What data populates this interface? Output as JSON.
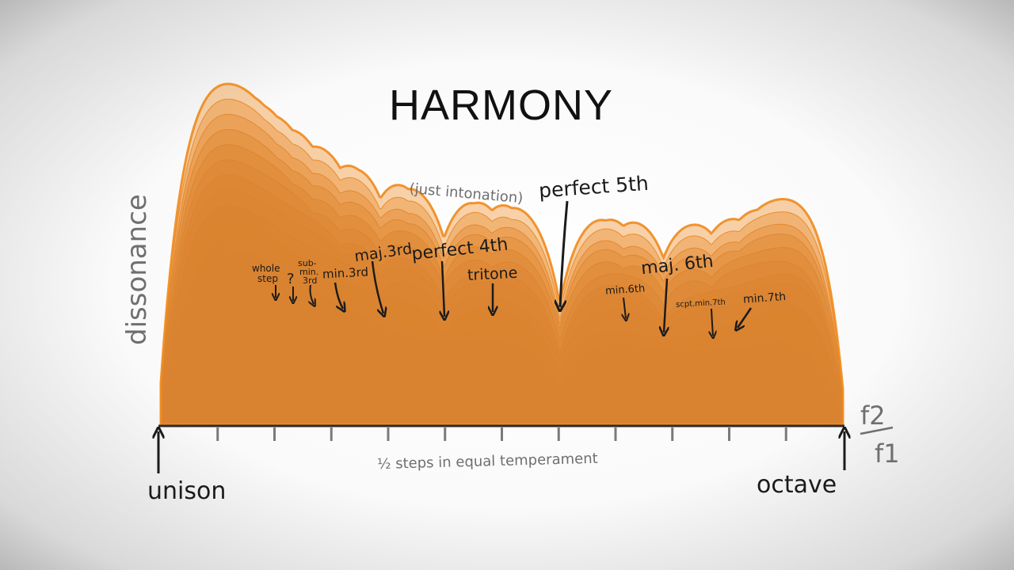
{
  "header": {
    "title": "HARMONY"
  },
  "chart_data": {
    "type": "area",
    "title": "HARMONY",
    "ylabel": "dissonance",
    "xlabel": "½ steps in equal temperament",
    "x_axis_ratio": {
      "numerator": "f2",
      "denominator": "f1"
    },
    "x_range_semitones": [
      0,
      12
    ],
    "ylim": [
      0,
      1
    ],
    "grid": false,
    "layers": 14,
    "colors": {
      "low": "#3a55c0",
      "high": "#f08a1c",
      "dark": "#1b1b1b",
      "muted": "#6f6f6f"
    },
    "peak_values": [
      {
        "x": 0.12,
        "y": 1.0
      },
      {
        "x": 1.7,
        "y": 0.47
      },
      {
        "x": 3.3,
        "y": 0.36
      },
      {
        "x": 5.5,
        "y": 0.4
      },
      {
        "x": 6.8,
        "y": 0.43
      },
      {
        "x": 9.0,
        "y": 0.3
      },
      {
        "x": 11.6,
        "y": 0.67
      }
    ],
    "annotations": {
      "unison": "unison",
      "octave": "octave",
      "just_intonation": "(just intonation)",
      "whole_step": [
        "whole",
        "step"
      ],
      "unknown": "?",
      "submin3": [
        "sub-",
        "min.",
        "3rd"
      ],
      "min3": "min.3rd",
      "maj3": "maj.3rd",
      "perfect4": "perfect 4th",
      "tritone": "tritone",
      "perfect5": "perfect 5th",
      "min6": "min.6th",
      "maj6": "maj. 6th",
      "sept_min7": "scpt.min.7th",
      "min7": "min.7th"
    }
  }
}
